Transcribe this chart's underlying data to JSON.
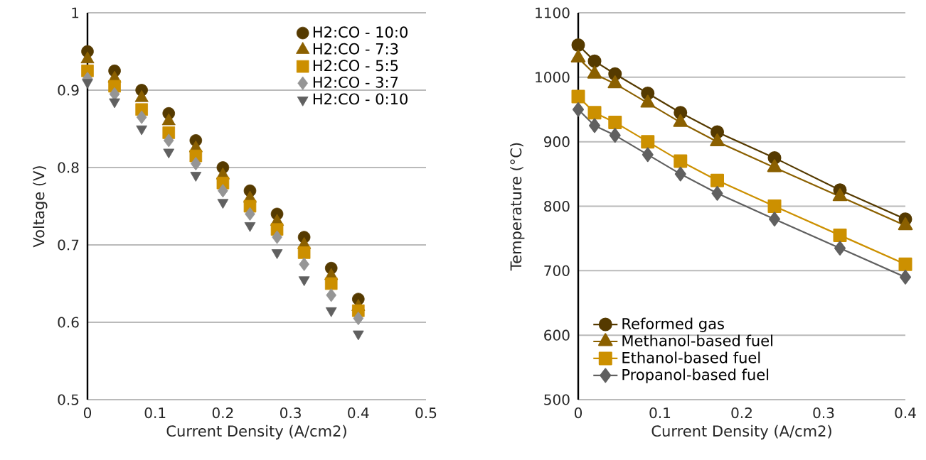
{
  "chart_data": [
    {
      "type": "scatter",
      "xlabel": "Current Density (A/cm2)",
      "ylabel": "Voltage (V)",
      "xlim": [
        0,
        0.5
      ],
      "ylim": [
        0.5,
        1
      ],
      "xticks": [
        0,
        0.1,
        0.2,
        0.3,
        0.4,
        0.5
      ],
      "yticks": [
        0.5,
        0.6,
        0.7,
        0.8,
        0.9,
        1
      ],
      "grid": "y",
      "legend": "top right",
      "x": [
        0,
        0.04,
        0.08,
        0.12,
        0.16,
        0.2,
        0.24,
        0.28,
        0.32,
        0.36,
        0.4
      ],
      "series": [
        {
          "name": "H2:CO - 10:0",
          "color": "#553a00",
          "marker": "circle",
          "values": [
            0.95,
            0.925,
            0.9,
            0.87,
            0.835,
            0.8,
            0.77,
            0.74,
            0.71,
            0.67,
            0.63
          ]
        },
        {
          "name": "H2:CO - 7:3",
          "color": "#8b6000",
          "marker": "triangle",
          "values": [
            0.94,
            0.915,
            0.89,
            0.86,
            0.825,
            0.79,
            0.76,
            0.73,
            0.7,
            0.66,
            0.62
          ]
        },
        {
          "name": "H2:CO - 5:5",
          "color": "#cc8f00",
          "marker": "square",
          "values": [
            0.925,
            0.905,
            0.875,
            0.845,
            0.815,
            0.78,
            0.75,
            0.72,
            0.69,
            0.65,
            0.615
          ]
        },
        {
          "name": "H2:CO - 3:7",
          "color": "#959595",
          "marker": "diamond",
          "values": [
            0.915,
            0.895,
            0.865,
            0.835,
            0.805,
            0.77,
            0.74,
            0.71,
            0.675,
            0.635,
            0.605
          ]
        },
        {
          "name": "H2:CO - 0:10",
          "color": "#606060",
          "marker": "triangle-down",
          "values": [
            0.91,
            0.885,
            0.85,
            0.82,
            0.79,
            0.755,
            0.725,
            0.69,
            0.655,
            0.615,
            0.585
          ]
        }
      ]
    },
    {
      "type": "line",
      "xlabel": "Current Density (A/cm2)",
      "ylabel": "Temperature (°C)",
      "xlim": [
        0,
        0.4
      ],
      "ylim": [
        500,
        1100
      ],
      "xticks": [
        0,
        0.1,
        0.2,
        0.3,
        0.4
      ],
      "yticks": [
        500,
        600,
        700,
        800,
        900,
        1000,
        1100
      ],
      "grid": "y",
      "legend": "bottom left",
      "x": [
        0,
        0.02,
        0.045,
        0.085,
        0.125,
        0.17,
        0.24,
        0.32,
        0.4
      ],
      "series": [
        {
          "name": "Reformed gas",
          "color": "#553a00",
          "marker": "circle",
          "values": [
            1050,
            1025,
            1005,
            975,
            945,
            915,
            875,
            825,
            780
          ]
        },
        {
          "name": "Methanol-based fuel",
          "color": "#8b6000",
          "marker": "triangle",
          "values": [
            1030,
            1005,
            990,
            960,
            930,
            900,
            860,
            815,
            770
          ]
        },
        {
          "name": "Ethanol-based fuel",
          "color": "#cc9000",
          "marker": "square",
          "values": [
            970,
            945,
            930,
            900,
            870,
            840,
            800,
            755,
            710
          ]
        },
        {
          "name": "Propanol-based fuel",
          "color": "#606060",
          "marker": "diamond",
          "values": [
            950,
            925,
            910,
            880,
            850,
            820,
            780,
            735,
            690
          ]
        }
      ]
    }
  ]
}
